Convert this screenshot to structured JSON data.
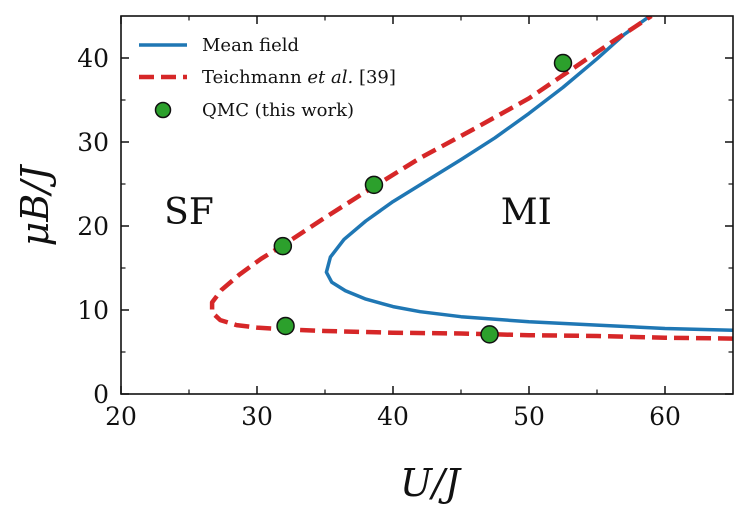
{
  "chart_data": {
    "type": "line",
    "xlabel": "U/J",
    "ylabel": "μB/J",
    "xlim": [
      20,
      65
    ],
    "ylim": [
      0,
      45
    ],
    "x_ticks": [
      20,
      30,
      40,
      50,
      60
    ],
    "y_ticks": [
      0,
      10,
      20,
      30,
      40
    ],
    "grid": false,
    "legend_position": "top-left",
    "colors": {
      "mean_field": "#1f77b4",
      "teichmann": "#d62728",
      "qmc": "#2ca02c"
    },
    "series": [
      {
        "name": "Mean field",
        "style": "solid",
        "points": [
          [
            65,
            7.6
          ],
          [
            60,
            7.8
          ],
          [
            55,
            8.2
          ],
          [
            50,
            8.6
          ],
          [
            45,
            9.2
          ],
          [
            42,
            9.8
          ],
          [
            40,
            10.4
          ],
          [
            38,
            11.3
          ],
          [
            36.5,
            12.3
          ],
          [
            35.5,
            13.3
          ],
          [
            35.1,
            14.5
          ],
          [
            35.4,
            16.3
          ],
          [
            36.4,
            18.4
          ],
          [
            38,
            20.6
          ],
          [
            40,
            22.9
          ],
          [
            42.5,
            25.4
          ],
          [
            45,
            27.9
          ],
          [
            47.5,
            30.5
          ],
          [
            50,
            33.4
          ],
          [
            52.5,
            36.5
          ],
          [
            55,
            39.9
          ],
          [
            57,
            42.8
          ],
          [
            58.9,
            45
          ]
        ]
      },
      {
        "name": "Teichmann et al. [39]",
        "name_parts": {
          "prefix": "Teichmann ",
          "italic": "et al.",
          "suffix": " [39]"
        },
        "style": "dashed",
        "points": [
          [
            65,
            6.6
          ],
          [
            60,
            6.7
          ],
          [
            55,
            6.9
          ],
          [
            50,
            7.0
          ],
          [
            45,
            7.2
          ],
          [
            40,
            7.3
          ],
          [
            35,
            7.5
          ],
          [
            32,
            7.7
          ],
          [
            30,
            7.9
          ],
          [
            28.5,
            8.2
          ],
          [
            27.3,
            8.8
          ],
          [
            26.7,
            9.7
          ],
          [
            26.7,
            10.9
          ],
          [
            27.4,
            12.4
          ],
          [
            28.7,
            14.2
          ],
          [
            30.3,
            16.1
          ],
          [
            32,
            17.8
          ],
          [
            35,
            21.0
          ],
          [
            38.5,
            24.6
          ],
          [
            42,
            28.1
          ],
          [
            46,
            31.6
          ],
          [
            50,
            35.2
          ],
          [
            53,
            38.5
          ],
          [
            56,
            41.8
          ],
          [
            59,
            45
          ]
        ]
      },
      {
        "name": "QMC (this work)",
        "style": "markers",
        "points": [
          [
            31.9,
            17.6
          ],
          [
            32.1,
            8.1
          ],
          [
            38.6,
            24.9
          ],
          [
            47.1,
            7.1
          ],
          [
            52.5,
            39.4
          ]
        ]
      }
    ],
    "annotations": [
      {
        "text": "SF",
        "x": 25,
        "y": 21.8
      },
      {
        "text": "MI",
        "x": 49.8,
        "y": 21.8
      }
    ]
  }
}
